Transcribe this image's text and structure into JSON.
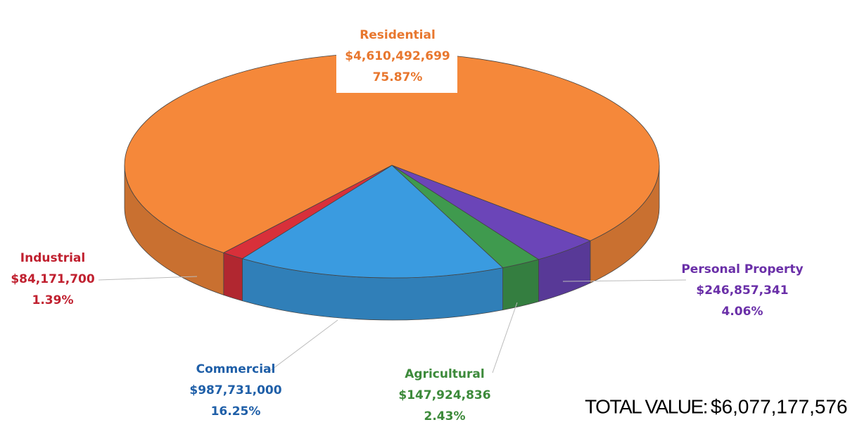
{
  "chart_data": {
    "type": "pie",
    "categories": [
      "Residential",
      "Personal Property",
      "Agricultural",
      "Commercial",
      "Industrial"
    ],
    "values": [
      4610492699,
      246857341,
      147924836,
      987731000,
      84171700
    ],
    "value_labels": [
      "$4,610,492,699",
      "$246,857,341",
      "$147,924,836",
      "$987,731,000",
      "$84,171,700"
    ],
    "percents": [
      75.87,
      4.06,
      2.43,
      16.25,
      1.39
    ],
    "percent_labels": [
      "75.87%",
      "4.06%",
      "2.43%",
      "16.25%",
      "1.39%"
    ],
    "colors": [
      "#f5883a",
      "#6b45b8",
      "#3f9a4e",
      "#3a9be0",
      "#d8303a"
    ],
    "label_colors": [
      "#e8772e",
      "#6a2fa8",
      "#3c8a3a",
      "#1f5fa8",
      "#c0202f"
    ],
    "total_label": "TOTAL VALUE:",
    "total_value_label": "$6,077,177,576"
  }
}
